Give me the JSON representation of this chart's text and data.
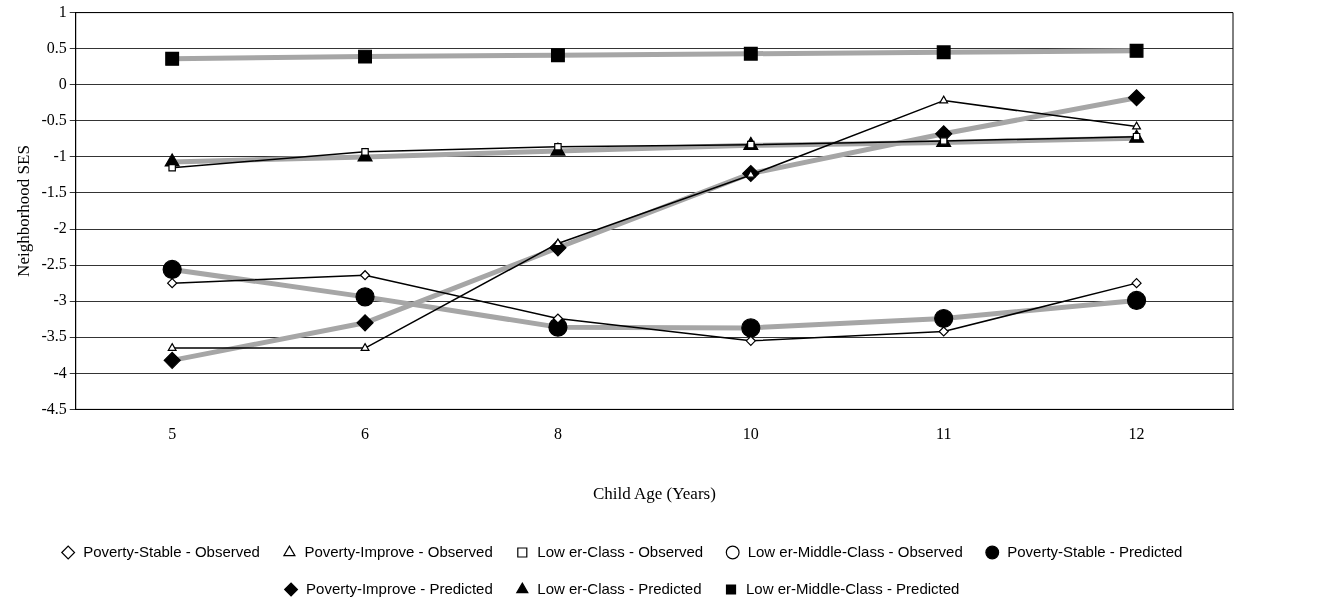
{
  "chart_data": {
    "type": "line",
    "xlabel": "Child Age (Years)",
    "ylabel": "Neighborhood SES",
    "categories": [
      "5",
      "6",
      "8",
      "10",
      "11",
      "12"
    ],
    "ylim": [
      -4.5,
      1
    ],
    "yticks": [
      -4.5,
      -4,
      -3.5,
      -3,
      -2.5,
      -2,
      -1.5,
      -1,
      -0.5,
      0,
      0.5,
      1
    ],
    "grid": "y",
    "legend": "bottom",
    "series": [
      {
        "name": "Poverty-Stable - Observed",
        "color": "#000000",
        "marker": "diamond",
        "values": [
          -2.75,
          -2.64,
          -3.24,
          -3.55,
          -3.42,
          -2.75
        ]
      },
      {
        "name": "Poverty-Stable - Predicted",
        "color": "#a6a6a6",
        "marker": "circle",
        "values": [
          -2.56,
          -2.94,
          -3.36,
          -3.37,
          -3.24,
          -2.99
        ]
      },
      {
        "name": "Poverty-Improve - Observed",
        "color": "#000000",
        "marker": "triangle",
        "values": [
          -3.65,
          -3.65,
          -2.2,
          -1.25,
          -0.22,
          -0.58
        ]
      },
      {
        "name": "Poverty-Improve - Predicted",
        "color": "#a6a6a6",
        "marker": "diamond",
        "values": [
          -3.82,
          -3.3,
          -2.26,
          -1.23,
          -0.68,
          -0.18
        ]
      },
      {
        "name": "Low er-Class - Observed",
        "color": "#000000",
        "marker": "square",
        "values": [
          -1.15,
          -0.93,
          -0.86,
          -0.83,
          -0.78,
          -0.72
        ]
      },
      {
        "name": "Low er-Class - Predicted",
        "color": "#a6a6a6",
        "marker": "triangle",
        "values": [
          -1.07,
          -1.0,
          -0.92,
          -0.84,
          -0.8,
          -0.74
        ]
      },
      {
        "name": "Low er-Middle-Class - Observed",
        "color": "#000000",
        "marker": "circle",
        "values": [
          null,
          null,
          null,
          null,
          null,
          null
        ]
      },
      {
        "name": "Low er-Middle-Class - Predicted",
        "color": "#a6a6a6",
        "marker": "square",
        "values": [
          0.36,
          0.39,
          0.41,
          0.43,
          0.45,
          0.47
        ]
      }
    ]
  }
}
